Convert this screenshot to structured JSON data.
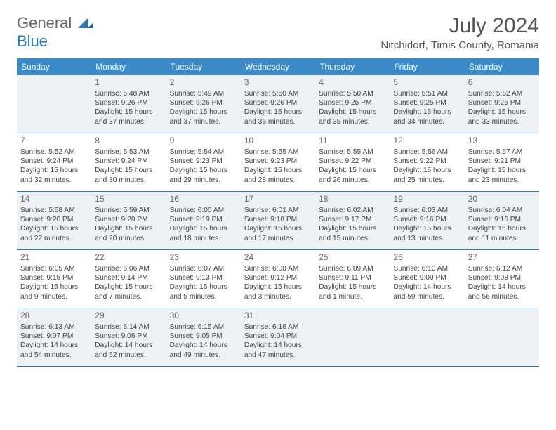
{
  "logo": {
    "text1": "General",
    "text2": "Blue"
  },
  "title": "July 2024",
  "location": "Nitchidorf, Timis County, Romania",
  "dayNames": [
    "Sunday",
    "Monday",
    "Tuesday",
    "Wednesday",
    "Thursday",
    "Friday",
    "Saturday"
  ],
  "colors": {
    "headerBg": "#3a89c9",
    "headerText": "#ffffff",
    "altCellBg": "#edf1f4",
    "weekBorder": "#2a7ab9",
    "bodyText": "#444444",
    "titleText": "#555555",
    "logoBlue": "#2a7ab9",
    "logoGrey": "#666666",
    "background": "#ffffff"
  },
  "weeks": [
    [
      {
        "n": "",
        "sr": "",
        "ss": "",
        "dl": ""
      },
      {
        "n": "1",
        "sr": "Sunrise: 5:48 AM",
        "ss": "Sunset: 9:26 PM",
        "dl": "Daylight: 15 hours and 37 minutes."
      },
      {
        "n": "2",
        "sr": "Sunrise: 5:49 AM",
        "ss": "Sunset: 9:26 PM",
        "dl": "Daylight: 15 hours and 37 minutes."
      },
      {
        "n": "3",
        "sr": "Sunrise: 5:50 AM",
        "ss": "Sunset: 9:26 PM",
        "dl": "Daylight: 15 hours and 36 minutes."
      },
      {
        "n": "4",
        "sr": "Sunrise: 5:50 AM",
        "ss": "Sunset: 9:25 PM",
        "dl": "Daylight: 15 hours and 35 minutes."
      },
      {
        "n": "5",
        "sr": "Sunrise: 5:51 AM",
        "ss": "Sunset: 9:25 PM",
        "dl": "Daylight: 15 hours and 34 minutes."
      },
      {
        "n": "6",
        "sr": "Sunrise: 5:52 AM",
        "ss": "Sunset: 9:25 PM",
        "dl": "Daylight: 15 hours and 33 minutes."
      }
    ],
    [
      {
        "n": "7",
        "sr": "Sunrise: 5:52 AM",
        "ss": "Sunset: 9:24 PM",
        "dl": "Daylight: 15 hours and 32 minutes."
      },
      {
        "n": "8",
        "sr": "Sunrise: 5:53 AM",
        "ss": "Sunset: 9:24 PM",
        "dl": "Daylight: 15 hours and 30 minutes."
      },
      {
        "n": "9",
        "sr": "Sunrise: 5:54 AM",
        "ss": "Sunset: 9:23 PM",
        "dl": "Daylight: 15 hours and 29 minutes."
      },
      {
        "n": "10",
        "sr": "Sunrise: 5:55 AM",
        "ss": "Sunset: 9:23 PM",
        "dl": "Daylight: 15 hours and 28 minutes."
      },
      {
        "n": "11",
        "sr": "Sunrise: 5:55 AM",
        "ss": "Sunset: 9:22 PM",
        "dl": "Daylight: 15 hours and 26 minutes."
      },
      {
        "n": "12",
        "sr": "Sunrise: 5:56 AM",
        "ss": "Sunset: 9:22 PM",
        "dl": "Daylight: 15 hours and 25 minutes."
      },
      {
        "n": "13",
        "sr": "Sunrise: 5:57 AM",
        "ss": "Sunset: 9:21 PM",
        "dl": "Daylight: 15 hours and 23 minutes."
      }
    ],
    [
      {
        "n": "14",
        "sr": "Sunrise: 5:58 AM",
        "ss": "Sunset: 9:20 PM",
        "dl": "Daylight: 15 hours and 22 minutes."
      },
      {
        "n": "15",
        "sr": "Sunrise: 5:59 AM",
        "ss": "Sunset: 9:20 PM",
        "dl": "Daylight: 15 hours and 20 minutes."
      },
      {
        "n": "16",
        "sr": "Sunrise: 6:00 AM",
        "ss": "Sunset: 9:19 PM",
        "dl": "Daylight: 15 hours and 18 minutes."
      },
      {
        "n": "17",
        "sr": "Sunrise: 6:01 AM",
        "ss": "Sunset: 9:18 PM",
        "dl": "Daylight: 15 hours and 17 minutes."
      },
      {
        "n": "18",
        "sr": "Sunrise: 6:02 AM",
        "ss": "Sunset: 9:17 PM",
        "dl": "Daylight: 15 hours and 15 minutes."
      },
      {
        "n": "19",
        "sr": "Sunrise: 6:03 AM",
        "ss": "Sunset: 9:16 PM",
        "dl": "Daylight: 15 hours and 13 minutes."
      },
      {
        "n": "20",
        "sr": "Sunrise: 6:04 AM",
        "ss": "Sunset: 9:16 PM",
        "dl": "Daylight: 15 hours and 11 minutes."
      }
    ],
    [
      {
        "n": "21",
        "sr": "Sunrise: 6:05 AM",
        "ss": "Sunset: 9:15 PM",
        "dl": "Daylight: 15 hours and 9 minutes."
      },
      {
        "n": "22",
        "sr": "Sunrise: 6:06 AM",
        "ss": "Sunset: 9:14 PM",
        "dl": "Daylight: 15 hours and 7 minutes."
      },
      {
        "n": "23",
        "sr": "Sunrise: 6:07 AM",
        "ss": "Sunset: 9:13 PM",
        "dl": "Daylight: 15 hours and 5 minutes."
      },
      {
        "n": "24",
        "sr": "Sunrise: 6:08 AM",
        "ss": "Sunset: 9:12 PM",
        "dl": "Daylight: 15 hours and 3 minutes."
      },
      {
        "n": "25",
        "sr": "Sunrise: 6:09 AM",
        "ss": "Sunset: 9:11 PM",
        "dl": "Daylight: 15 hours and 1 minute."
      },
      {
        "n": "26",
        "sr": "Sunrise: 6:10 AM",
        "ss": "Sunset: 9:09 PM",
        "dl": "Daylight: 14 hours and 59 minutes."
      },
      {
        "n": "27",
        "sr": "Sunrise: 6:12 AM",
        "ss": "Sunset: 9:08 PM",
        "dl": "Daylight: 14 hours and 56 minutes."
      }
    ],
    [
      {
        "n": "28",
        "sr": "Sunrise: 6:13 AM",
        "ss": "Sunset: 9:07 PM",
        "dl": "Daylight: 14 hours and 54 minutes."
      },
      {
        "n": "29",
        "sr": "Sunrise: 6:14 AM",
        "ss": "Sunset: 9:06 PM",
        "dl": "Daylight: 14 hours and 52 minutes."
      },
      {
        "n": "30",
        "sr": "Sunrise: 6:15 AM",
        "ss": "Sunset: 9:05 PM",
        "dl": "Daylight: 14 hours and 49 minutes."
      },
      {
        "n": "31",
        "sr": "Sunrise: 6:16 AM",
        "ss": "Sunset: 9:04 PM",
        "dl": "Daylight: 14 hours and 47 minutes."
      },
      {
        "n": "",
        "sr": "",
        "ss": "",
        "dl": ""
      },
      {
        "n": "",
        "sr": "",
        "ss": "",
        "dl": ""
      },
      {
        "n": "",
        "sr": "",
        "ss": "",
        "dl": ""
      }
    ]
  ]
}
